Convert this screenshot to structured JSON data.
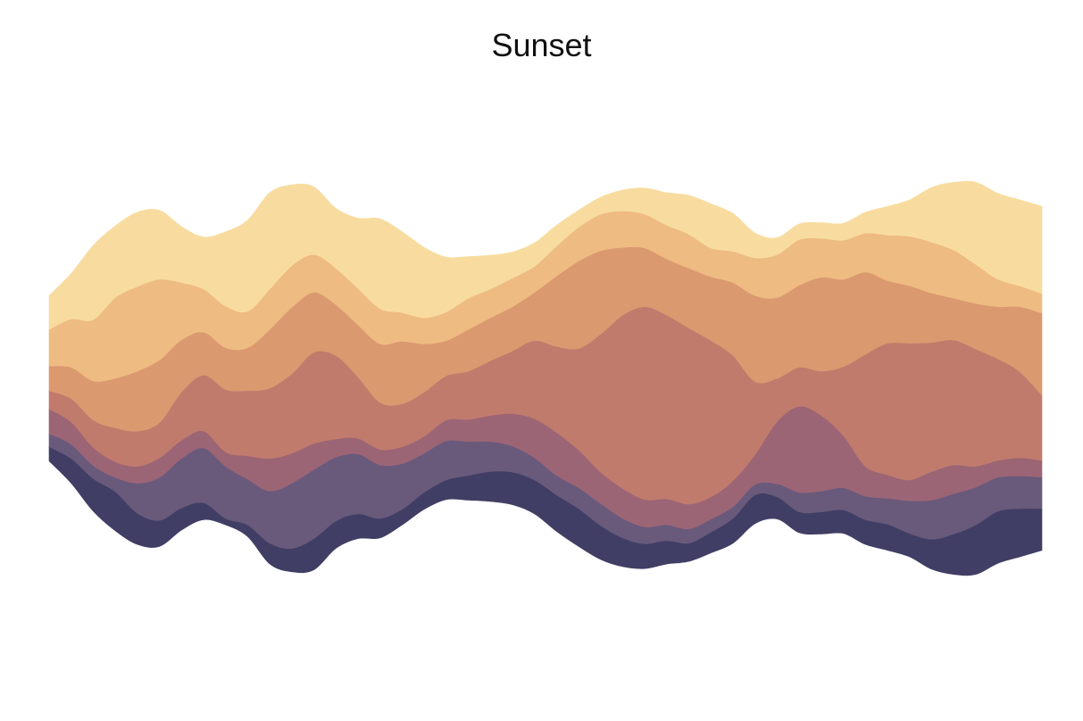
{
  "chart_data": {
    "type": "area",
    "title": "Sunset",
    "xlabel": "",
    "ylabel": "",
    "axes_visible": false,
    "grid": false,
    "x": [
      0,
      1,
      2,
      3,
      4,
      5,
      6,
      7,
      8,
      9,
      10,
      11,
      12,
      13,
      14,
      15,
      16,
      17,
      18,
      19,
      20,
      21,
      22,
      23,
      24,
      25,
      26,
      27,
      28,
      29,
      30,
      31,
      32,
      33,
      34,
      35,
      36,
      37,
      38,
      39,
      40,
      41,
      42,
      43,
      44,
      45
    ],
    "series": [
      {
        "color": "#403e64",
        "values": [
          1.1,
          1.9,
          2.5,
          3.0,
          2.4,
          2.0,
          1.7,
          1.3,
          0.5,
          0.9,
          1.6,
          1.8,
          2.4,
          2.1,
          1.9,
          1.5,
          1.2,
          1.3,
          1.5,
          1.9,
          2.3,
          2.5,
          2.6,
          2.8,
          2.9,
          2.6,
          2.2,
          1.9,
          1.8,
          1.4,
          1.6,
          1.9,
          2.2,
          1.7,
          1.6,
          1.7,
          1.8,
          1.9,
          2.0,
          1.8,
          2.3,
          3.1,
          3.8,
          4.0,
          3.7,
          3.2
        ]
      },
      {
        "color": "#695a7c",
        "values": [
          1.0,
          1.1,
          1.0,
          1.1,
          2.3,
          3.3,
          3.8,
          4.2,
          4.0,
          3.5,
          4.0,
          5.0,
          5.3,
          4.9,
          4.6,
          4.1,
          3.5,
          3.0,
          3.0,
          2.6,
          2.3,
          2.0,
          1.7,
          1.5,
          1.6,
          1.7,
          1.5,
          1.3,
          1.2,
          1.1,
          1.0,
          0.9,
          0.8,
          1.0,
          1.5,
          1.6,
          1.7,
          1.8,
          2.0,
          2.5,
          3.0,
          3.1,
          2.9,
          2.6,
          2.5,
          2.4
        ]
      },
      {
        "color": "#9c6575",
        "values": [
          1.9,
          1.7,
          1.4,
          1.2,
          1.3,
          1.5,
          1.4,
          1.3,
          1.1,
          1.8,
          2.5,
          2.3,
          2.0,
          1.4,
          1.2,
          1.2,
          1.3,
          1.3,
          1.6,
          1.7,
          2.0,
          2.5,
          3.0,
          3.3,
          2.9,
          2.4,
          2.3,
          2.1,
          2.0,
          1.9,
          1.7,
          2.0,
          2.3,
          4.8,
          6.6,
          5.8,
          4.0,
          2.3,
          1.8,
          1.6,
          2.2,
          2.2,
          1.6,
          1.3,
          1.4,
          1.3
        ]
      },
      {
        "color": "#c17b6d",
        "values": [
          1.4,
          1.8,
          2.1,
          2.6,
          2.7,
          2.7,
          3.7,
          4.3,
          4.8,
          5.0,
          5.4,
          6.1,
          7.0,
          6.4,
          4.7,
          3.6,
          3.3,
          3.4,
          3.4,
          3.7,
          4.2,
          4.8,
          6.0,
          6.6,
          7.8,
          10.6,
          13.3,
          14.8,
          14.1,
          13.5,
          12.0,
          9.6,
          5.6,
          3.3,
          3.0,
          3.4,
          5.3,
          8.6,
          10.1,
          10.5,
          9.9,
          9.6,
          9.0,
          7.8,
          6.6,
          5.0
        ]
      },
      {
        "color": "#db996f",
        "values": [
          1.9,
          2.4,
          3.0,
          3.8,
          4.6,
          4.8,
          4.0,
          3.3,
          3.2,
          3.3,
          4.5,
          5.1,
          4.6,
          3.9,
          4.0,
          4.5,
          4.8,
          3.7,
          2.7,
          3.2,
          3.3,
          3.4,
          3.7,
          5.4,
          6.7,
          6.4,
          5.2,
          4.5,
          4.3,
          4.6,
          4.9,
          5.6,
          6.6,
          6.2,
          6.3,
          7.2,
          6.7,
          6.3,
          4.8,
          4.4,
          3.8,
          3.2,
          3.5,
          4.0,
          5.0,
          6.3
        ]
      },
      {
        "color": "#eebb82",
        "values": [
          2.8,
          3.7,
          4.7,
          6.2,
          6.5,
          6.2,
          4.4,
          3.3,
          3.2,
          2.8,
          3.1,
          3.2,
          2.9,
          2.8,
          2.8,
          2.7,
          2.2,
          2.0,
          2.2,
          2.4,
          2.2,
          2.2,
          2.0,
          2.3,
          2.6,
          2.8,
          2.8,
          2.6,
          2.6,
          2.6,
          2.2,
          2.4,
          2.9,
          3.3,
          3.5,
          3.0,
          3.0,
          3.0,
          3.5,
          3.8,
          3.9,
          3.7,
          3.0,
          2.1,
          1.6,
          1.5
        ]
      },
      {
        "color": "#f8dc9f",
        "values": [
          2.6,
          3.5,
          5.7,
          5.5,
          5.7,
          5.3,
          4.3,
          4.0,
          5.7,
          7.0,
          7.4,
          6.2,
          5.2,
          4.6,
          5.4,
          6.9,
          6.2,
          5.4,
          4.2,
          3.2,
          2.6,
          2.0,
          1.8,
          1.6,
          1.3,
          1.3,
          1.6,
          2.0,
          2.5,
          3.0,
          3.4,
          2.9,
          1.9,
          1.3,
          1.2,
          1.2,
          1.3,
          1.6,
          2.2,
          2.8,
          4.2,
          5.2,
          6.3,
          6.6,
          6.6,
          6.7
        ]
      }
    ]
  }
}
